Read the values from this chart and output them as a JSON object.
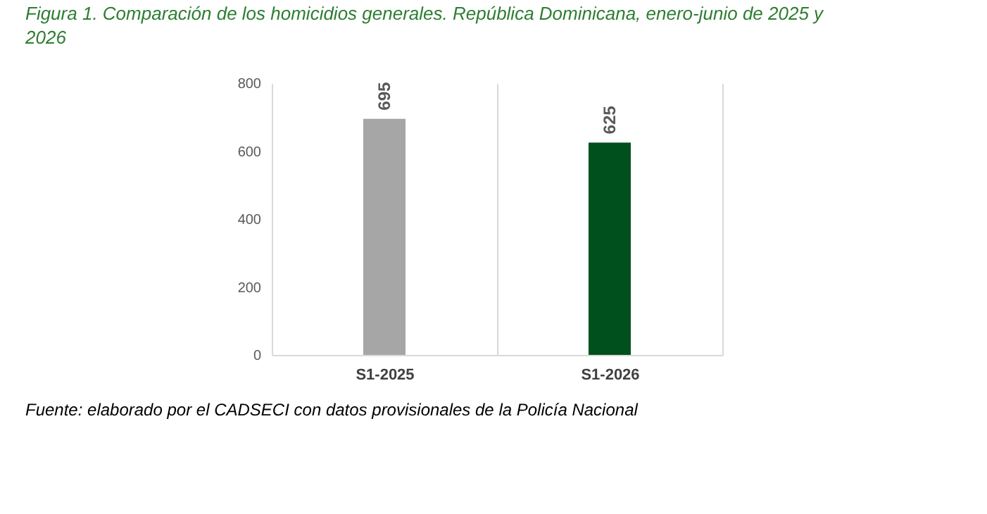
{
  "chart_data": {
    "type": "bar",
    "title": "Figura 1. Comparación de los homicidios generales. República Dominicana, enero-junio de 2025 y 2026",
    "categories": [
      "S1-2025",
      "S1-2026"
    ],
    "values": [
      695,
      625
    ],
    "colors": [
      "#a6a6a6",
      "#00501e"
    ],
    "ylim": [
      0,
      800
    ],
    "yticks": [
      0,
      200,
      400,
      600,
      800
    ],
    "grid": "x",
    "data_labels": true,
    "annotations": [
      "Fuente: elaborado por el CADSECI con datos provisionales de la Policía Nacional"
    ]
  }
}
